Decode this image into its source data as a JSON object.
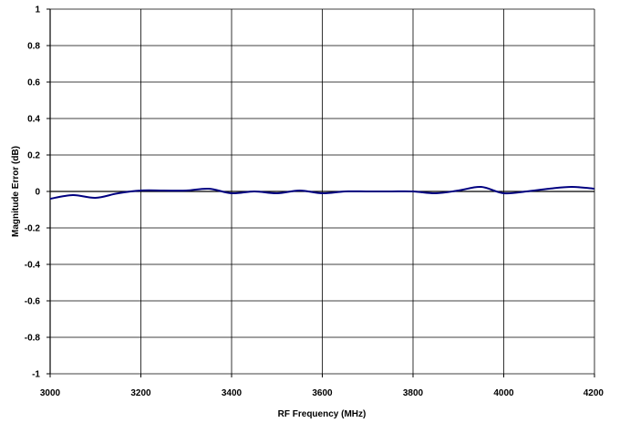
{
  "chart_data": {
    "type": "line",
    "title": "",
    "xlabel": "RF Frequency (MHz)",
    "ylabel": "Magnitude Error (dB)",
    "xlim": [
      3000,
      4200
    ],
    "ylim": [
      -1,
      1
    ],
    "x_ticks": [
      3000,
      3200,
      3400,
      3600,
      3800,
      4000,
      4200
    ],
    "y_ticks": [
      1,
      0.8,
      0.6,
      0.4,
      0.2,
      0,
      -0.2,
      -0.4,
      -0.6,
      -0.8,
      -1
    ],
    "x_tick_labels": [
      "3000",
      "3200",
      "3400",
      "3600",
      "3800",
      "4000",
      "4200"
    ],
    "y_tick_labels": [
      "1",
      "0.8",
      "0.6",
      "0.4",
      "0.2",
      "0",
      "-0.2",
      "-0.4",
      "-0.6",
      "-0.8",
      "-1"
    ],
    "grid": true,
    "legend": "none",
    "series": [
      {
        "color": "#000080",
        "x": [
          3000,
          3050,
          3100,
          3150,
          3200,
          3250,
          3300,
          3350,
          3400,
          3450,
          3500,
          3550,
          3600,
          3650,
          3700,
          3750,
          3800,
          3850,
          3900,
          3950,
          4000,
          4050,
          4100,
          4150,
          4200
        ],
        "y": [
          -0.04,
          -0.02,
          -0.035,
          -0.01,
          0.005,
          0.005,
          0.005,
          0.015,
          -0.01,
          0.0,
          -0.01,
          0.005,
          -0.01,
          0.0,
          0.0,
          0.0,
          0.0,
          -0.01,
          0.005,
          0.025,
          -0.01,
          0.0,
          0.015,
          0.025,
          0.015
        ]
      }
    ]
  }
}
